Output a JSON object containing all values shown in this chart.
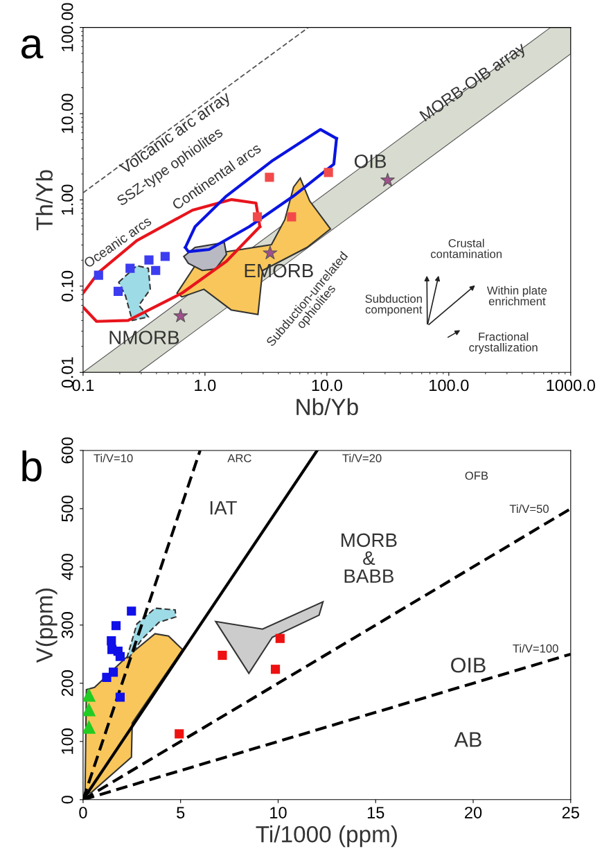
{
  "chart_data": [
    {
      "type": "scatter",
      "title": "a",
      "xlabel": "Nb/Yb",
      "ylabel": "Th/Yb",
      "log": "xy",
      "xlim": [
        0.1,
        1000
      ],
      "ylim": [
        0.01,
        100
      ],
      "xticks": [
        {
          "value": 0.1,
          "label": "0.1"
        },
        {
          "value": 1,
          "label": "1.0"
        },
        {
          "value": 10,
          "label": "10.0"
        },
        {
          "value": 100,
          "label": "100.0"
        },
        {
          "value": 1000,
          "label": "1000.0"
        }
      ],
      "yticks": [
        {
          "value": 0.01,
          "label": "0.01"
        },
        {
          "value": 0.1,
          "label": "0.10"
        },
        {
          "value": 1,
          "label": "1.00"
        },
        {
          "value": 10,
          "label": "10.00"
        },
        {
          "value": 100,
          "label": "100.00"
        }
      ],
      "grid": false,
      "legend": false,
      "series": [
        {
          "type": "line",
          "color": "#d8dcd0",
          "x": [
            0.1,
            0.287,
            683,
            1000
          ],
          "values": [
            null,
            null,
            null,
            null
          ],
          "lower": [
            0.01,
            0.01,
            33.2,
            49.4
          ],
          "upper": [
            0.01,
            0.03,
            100,
            100
          ]
        },
        {
          "type": "line",
          "color": "#555555",
          "line_style": "dashed",
          "x": [
            0.1,
            7.05
          ],
          "values": [
            1.21,
            100
          ]
        },
        {
          "type": "area",
          "color": "#f8c65a",
          "x": [
            0.59,
            0.83,
            1.5,
            3.51,
            4.52,
            5.33,
            6.05,
            7.23,
            10.7,
            6.87,
            2.97,
            2.72,
            1.64,
            0.98,
            0.647
          ],
          "values": [
            0.083,
            0.173,
            0.251,
            0.303,
            0.59,
            1.41,
            1.79,
            0.97,
            0.46,
            0.281,
            0.152,
            0.047,
            0.053,
            0.092,
            0.075
          ]
        },
        {
          "type": "area",
          "color": "#9ddbe6",
          "line_style": "dashed",
          "x": [
            0.196,
            0.276,
            0.343,
            0.356,
            0.287,
            0.343,
            0.253,
            0.223
          ],
          "values": [
            0.111,
            0.173,
            0.161,
            0.092,
            0.06,
            0.044,
            0.04,
            0.077
          ]
        },
        {
          "type": "area",
          "color": "#b9b9c4",
          "x": [
            0.67,
            0.83,
            1.44,
            1.5,
            1.22,
            0.95,
            0.73
          ],
          "values": [
            0.221,
            0.281,
            0.32,
            0.233,
            0.158,
            0.152,
            0.184
          ]
        },
        {
          "type": "line",
          "color": "#e8141c",
          "x": [
            0.1,
            0.129,
            0.234,
            0.647,
            1.5,
            2.82
          ],
          "values": [
            0.057,
            0.039,
            0.04,
            0.083,
            0.194,
            0.49
          ]
        },
        {
          "type": "line",
          "color": "#e8141c",
          "x": [
            0.1,
            0.134,
            0.276,
            0.79,
            1.64,
            2.62,
            2.82
          ],
          "values": [
            0.083,
            0.144,
            0.338,
            0.76,
            1.01,
            0.92,
            0.49
          ]
        },
        {
          "type": "line",
          "color": "#0a14e0",
          "x": [
            0.69,
            0.73,
            1.08,
            2.31,
            5.33,
            11.4,
            12.0
          ],
          "values": [
            0.281,
            0.251,
            0.266,
            0.49,
            1.11,
            2.6,
            5.15
          ]
        },
        {
          "type": "line",
          "color": "#0a14e0",
          "x": [
            0.69,
            0.83,
            1.5,
            3.51,
            8.87,
            12.0
          ],
          "values": [
            0.281,
            0.49,
            1.11,
            2.8,
            6.56,
            5.15
          ]
        },
        {
          "color": "#3c3cf0",
          "marker": "square",
          "x": [
            0.134,
            0.243,
            0.347,
            0.394,
            0.471,
            0.194
          ],
          "values": [
            0.134,
            0.161,
            0.201,
            0.152,
            0.221,
            0.087
          ]
        },
        {
          "color": "#f24a4a",
          "marker": "square",
          "x": [
            3.38,
            10.3,
            2.69,
            5.13
          ],
          "values": [
            1.83,
            2.08,
            0.636,
            0.636
          ]
        },
        {
          "color": "#a0508c",
          "marker": "star",
          "x": [
            0.631,
            3.42,
            31.5
          ],
          "values": [
            0.045,
            0.242,
            1.69
          ]
        }
      ],
      "annotations": [
        "Volcanic arc array",
        "SSZ-type ophiolites",
        "Continental arcs",
        "Oceanic arcs",
        "MORB-OIB array",
        {
          "text": "OIB",
          "x": 31.5,
          "y": 1.69
        },
        {
          "text": "EMORB",
          "x": 3.42,
          "y": 0.242
        },
        {
          "text": "NMORB",
          "x": 0.631,
          "y": 0.045
        },
        "Subduction-unrelated\nophiolites",
        "Crustal\ncontamination",
        "Subduction\ncomponent",
        "Within plate\nenrichment",
        "Fractional\ncrystallization"
      ]
    },
    {
      "type": "scatter",
      "title": "b",
      "xlabel": "Ti/1000 (ppm)",
      "ylabel": "V(ppm)",
      "xlim": [
        0,
        25
      ],
      "ylim": [
        0,
        600
      ],
      "xticks": [
        0,
        5,
        10,
        15,
        20,
        25
      ],
      "yticks": [
        0,
        100,
        200,
        300,
        400,
        500,
        600
      ],
      "grid": false,
      "legend": false,
      "series": [
        {
          "type": "area",
          "color": "#f8c65a",
          "x": [
            0.1,
            0.17,
            0.59,
            2.17,
            3.69,
            4.38,
            5.1,
            2.52,
            2.48,
            0.45
          ],
          "values": [
            8,
            189,
            193,
            243,
            285,
            281,
            258,
            132,
            73,
            13
          ]
        },
        {
          "type": "area",
          "color": "#9ddbe6",
          "line_style": "dashed",
          "x": [
            2.24,
            2.76,
            3.69,
            4.72,
            4.76,
            3.9,
            3.0,
            2.41
          ],
          "values": [
            243,
            302,
            329,
            326,
            314,
            305,
            275,
            246
          ]
        },
        {
          "type": "area",
          "color": "#cccccc",
          "x": [
            6.8,
            9.2,
            12.3,
            12.1,
            9.7,
            8.5
          ],
          "values": [
            306,
            293,
            340,
            317,
            279,
            217
          ]
        },
        {
          "type": "line",
          "color": "#000000",
          "line_style": "dashed",
          "x": [
            0,
            6
          ],
          "values": [
            0,
            600
          ]
        },
        {
          "type": "line",
          "color": "#000000",
          "line_style": "solid",
          "x": [
            0,
            12
          ],
          "values": [
            0,
            600
          ]
        },
        {
          "type": "line",
          "color": "#000000",
          "line_style": "dashed",
          "x": [
            0,
            25
          ],
          "values": [
            0,
            500
          ]
        },
        {
          "type": "line",
          "color": "#000000",
          "line_style": "dashed",
          "x": [
            0,
            25
          ],
          "values": [
            0,
            250
          ]
        },
        {
          "color": "#1010e8",
          "marker": "square",
          "x": [
            2.48,
            1.69,
            1.45,
            1.48,
            1.79,
            1.9,
            1.55,
            1.21,
            1.9
          ],
          "values": [
            324,
            299,
            273,
            258,
            255,
            246,
            219,
            210,
            176
          ]
        },
        {
          "color": "#ee1111",
          "marker": "square",
          "x": [
            4.93,
            7.14,
            10.1,
            9.86
          ],
          "values": [
            113,
            248,
            277,
            224
          ]
        },
        {
          "color": "#22cc22",
          "marker": "triangle",
          "x": [
            0.3,
            0.3,
            0.3
          ],
          "values": [
            180,
            155,
            125
          ]
        }
      ],
      "annotations": [
        "Ti/V=10",
        "ARC",
        "Ti/V=20",
        "OFB",
        "Ti/V=50",
        "IAT",
        "MORB\n&\nBABB",
        "Ti/V=100",
        "OIB",
        "AB"
      ]
    }
  ]
}
